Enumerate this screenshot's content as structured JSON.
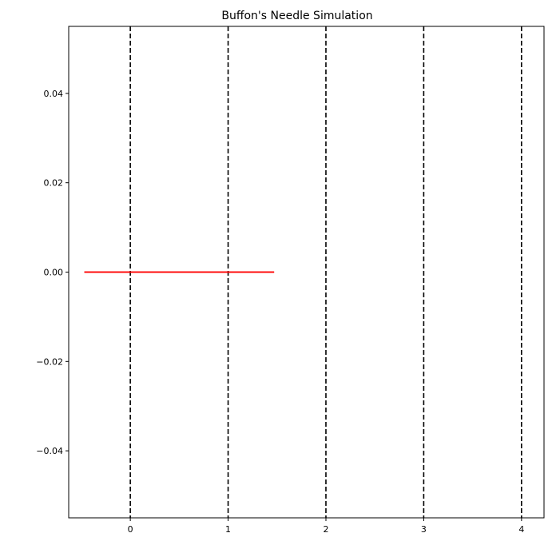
{
  "chart_data": {
    "type": "line",
    "title": "Buffon's Needle Simulation",
    "xlabel": "",
    "ylabel": "",
    "xlim": [
      -0.63,
      4.23
    ],
    "ylim": [
      -0.055,
      0.055
    ],
    "xticks": [
      0,
      1,
      2,
      3,
      4
    ],
    "xtick_labels": [
      "0",
      "1",
      "2",
      "3",
      "4"
    ],
    "yticks": [
      0.04,
      0.02,
      0.0,
      -0.02,
      -0.04
    ],
    "ytick_labels": [
      "0.04",
      "0.02",
      "0.00",
      "−0.02",
      "−0.04"
    ],
    "grid": false,
    "vertical_lines": {
      "x": [
        0,
        1,
        2,
        3,
        4
      ],
      "color": "#000000",
      "style": "dashed"
    },
    "needles": [
      {
        "x": [
          -0.47,
          1.47
        ],
        "y": [
          0.0,
          0.0
        ],
        "color": "#ff0000"
      },
      {
        "x": [
          -0.47,
          1.47
        ],
        "y": [
          0.0,
          0.0
        ],
        "color": "#ff0000"
      },
      {
        "x": [
          -0.47,
          1.47
        ],
        "y": [
          0.0,
          0.0
        ],
        "color": "#ff0000"
      }
    ]
  }
}
